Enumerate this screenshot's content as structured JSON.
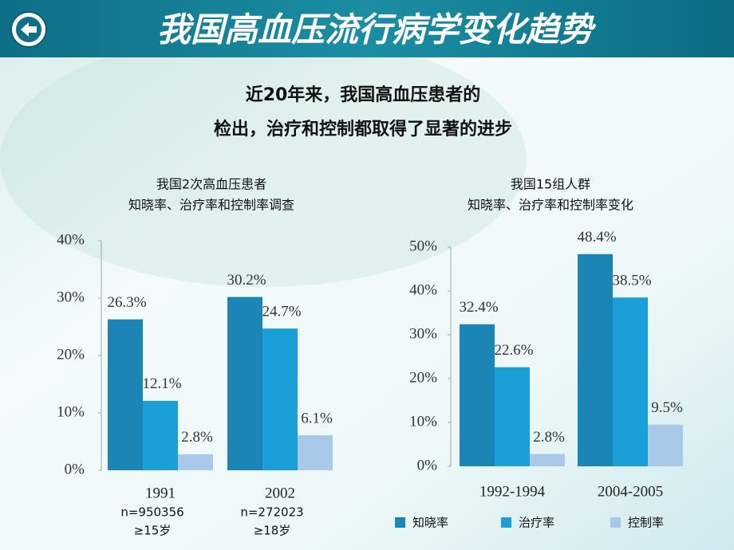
{
  "title": "我国高血压流行病学变化趋势",
  "subtitle": [
    "近20年来，我国高血压患者的",
    "检出，治疗和控制都取得了显著的进步"
  ],
  "chart_data": [
    {
      "type": "bar",
      "title": [
        "我国2次高血压患者",
        "知晓率、治疗率和控制率调查"
      ],
      "categories": [
        "1991",
        "2002"
      ],
      "notes": [
        [
          "n=950356",
          "≥15岁"
        ],
        [
          "n=272023",
          "≥18岁"
        ]
      ],
      "series": [
        {
          "color": "#1b86b6",
          "values": [
            26.3,
            30.2
          ],
          "value_labels": [
            "26.3%",
            "30.2%"
          ]
        },
        {
          "color": "#1a9fd9",
          "values": [
            12.1,
            24.7
          ],
          "value_labels": [
            "12.1%",
            "24.7%"
          ]
        },
        {
          "color": "#a9c9e9",
          "values": [
            2.8,
            6.1
          ],
          "value_labels": [
            "2.8%",
            "6.1%"
          ]
        }
      ],
      "ylim": [
        0,
        40
      ],
      "yticks": [
        {
          "value": 0,
          "label": "0%"
        },
        {
          "value": 10,
          "label": "10%"
        },
        {
          "value": 20,
          "label": "20%"
        },
        {
          "value": 30,
          "label": "30%"
        },
        {
          "value": 40,
          "label": "40%"
        }
      ]
    },
    {
      "type": "bar",
      "title": [
        "我国15组人群",
        "知晓率、治疗率和控制率变化"
      ],
      "categories": [
        "1992-1994",
        "2004-2005"
      ],
      "series": [
        {
          "name": "知晓率",
          "color": "#1b86b6",
          "values": [
            32.4,
            48.4
          ],
          "value_labels": [
            "32.4%",
            "48.4%"
          ]
        },
        {
          "name": "治疗率",
          "color": "#1a9fd9",
          "values": [
            22.6,
            38.5
          ],
          "value_labels": [
            "22.6%",
            "38.5%"
          ]
        },
        {
          "name": "控制率",
          "color": "#a9c9e9",
          "values": [
            2.8,
            9.5
          ],
          "value_labels": [
            "2.8%",
            "9.5%"
          ]
        }
      ],
      "ylim": [
        0,
        50
      ],
      "yticks": [
        {
          "value": 0,
          "label": "0%"
        },
        {
          "value": 10,
          "label": "10%"
        },
        {
          "value": 20,
          "label": "20%"
        },
        {
          "value": 30,
          "label": "30%"
        },
        {
          "value": 40,
          "label": "40%"
        },
        {
          "value": 50,
          "label": "50%"
        }
      ],
      "legend": "bottom"
    }
  ]
}
